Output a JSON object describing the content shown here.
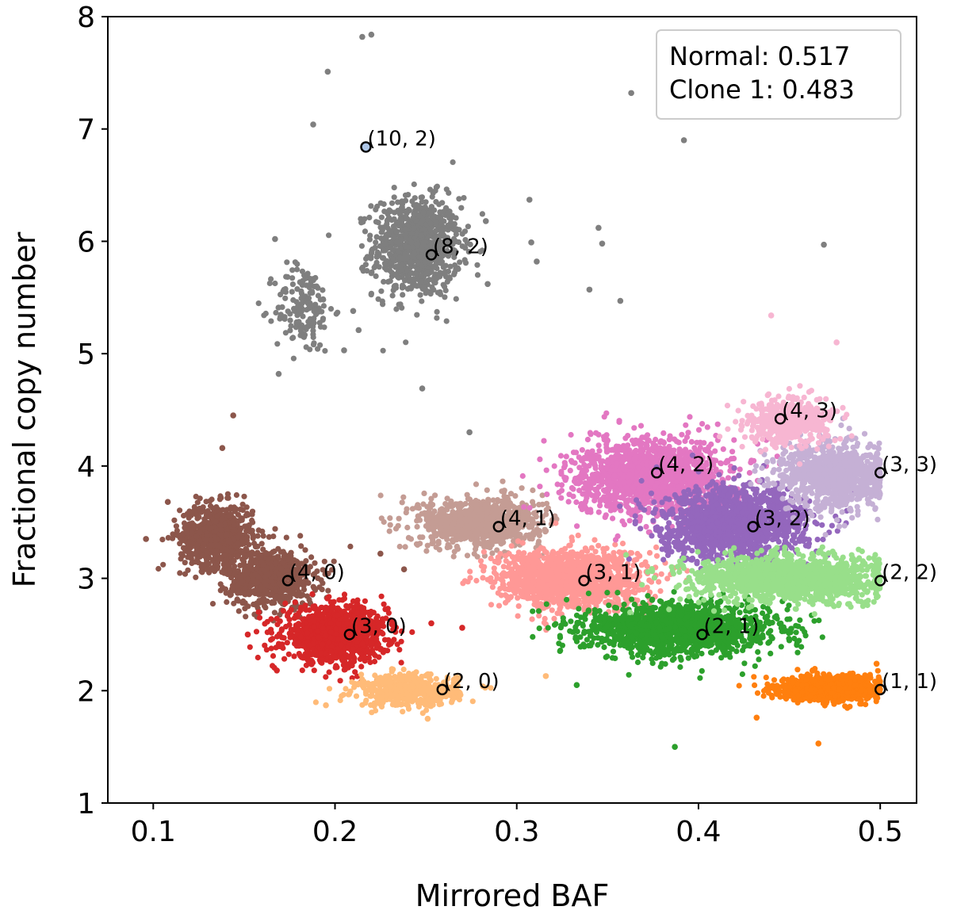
{
  "chart_data": {
    "type": "scatter",
    "xlabel": "Mirrored BAF",
    "ylabel": "Fractional copy number",
    "xlim": [
      0.075,
      0.52
    ],
    "ylim": [
      1,
      8
    ],
    "x_ticks": [
      0.1,
      0.2,
      0.3,
      0.4,
      0.5
    ],
    "x_tick_labels": [
      "0.1",
      "0.2",
      "0.3",
      "0.4",
      "0.5"
    ],
    "y_ticks": [
      1,
      2,
      3,
      4,
      5,
      6,
      7,
      8
    ],
    "y_tick_labels": [
      "1",
      "2",
      "3",
      "4",
      "5",
      "6",
      "7",
      "8"
    ],
    "grid": false,
    "legend": {
      "placement": "top-right",
      "entries": [
        "Normal: 0.517",
        "Clone 1: 0.483"
      ]
    },
    "clusters": [
      {
        "color": "#7f7f7f",
        "center": [
          0.245,
          5.95
        ],
        "spread": [
          0.012,
          0.22
        ],
        "n": 900
      },
      {
        "color": "#7f7f7f",
        "center": [
          0.183,
          5.4
        ],
        "spread": [
          0.008,
          0.2
        ],
        "n": 160
      },
      {
        "color": "#8c564b",
        "center": [
          0.135,
          3.38
        ],
        "spread": [
          0.01,
          0.14
        ],
        "n": 700
      },
      {
        "color": "#8c564b",
        "center": [
          0.165,
          3.0
        ],
        "spread": [
          0.012,
          0.13
        ],
        "n": 700
      },
      {
        "color": "#d62728",
        "center": [
          0.2,
          2.5
        ],
        "spread": [
          0.014,
          0.12
        ],
        "n": 1100
      },
      {
        "color": "#ffbb78",
        "center": [
          0.24,
          2.0
        ],
        "spread": [
          0.014,
          0.07
        ],
        "n": 500
      },
      {
        "color": "#c49c94",
        "center": [
          0.28,
          3.5
        ],
        "spread": [
          0.017,
          0.11
        ],
        "n": 900
      },
      {
        "color": "#ff9896",
        "center": [
          0.33,
          3.0
        ],
        "spread": [
          0.02,
          0.13
        ],
        "n": 1300
      },
      {
        "color": "#e377c2",
        "center": [
          0.375,
          3.9
        ],
        "spread": [
          0.022,
          0.17
        ],
        "n": 1400
      },
      {
        "color": "#9467bd",
        "center": [
          0.42,
          3.48
        ],
        "spread": [
          0.02,
          0.16
        ],
        "n": 1400
      },
      {
        "color": "#2ca02c",
        "center": [
          0.39,
          2.55
        ],
        "spread": [
          0.026,
          0.11
        ],
        "n": 1500
      },
      {
        "color": "#98df8a",
        "center": [
          0.45,
          3.0
        ],
        "spread": [
          0.026,
          0.1
        ],
        "n": 1500
      },
      {
        "color": "#c5b0d5",
        "center": [
          0.475,
          3.92
        ],
        "spread": [
          0.016,
          0.15
        ],
        "n": 900
      },
      {
        "color": "#f7b6d2",
        "center": [
          0.45,
          4.4
        ],
        "spread": [
          0.012,
          0.1
        ],
        "n": 500
      },
      {
        "color": "#ff7f0e",
        "center": [
          0.472,
          2.02
        ],
        "spread": [
          0.014,
          0.06
        ],
        "n": 800
      }
    ],
    "outliers": [
      {
        "x": 0.215,
        "y": 7.82,
        "color": "#7f7f7f"
      },
      {
        "x": 0.22,
        "y": 7.84,
        "color": "#7f7f7f"
      },
      {
        "x": 0.196,
        "y": 7.51,
        "color": "#7f7f7f"
      },
      {
        "x": 0.188,
        "y": 7.04,
        "color": "#7f7f7f"
      },
      {
        "x": 0.363,
        "y": 7.32,
        "color": "#7f7f7f"
      },
      {
        "x": 0.392,
        "y": 6.9,
        "color": "#7f7f7f"
      },
      {
        "x": 0.469,
        "y": 5.97,
        "color": "#7f7f7f"
      },
      {
        "x": 0.307,
        "y": 6.37,
        "color": "#7f7f7f"
      },
      {
        "x": 0.345,
        "y": 6.12,
        "color": "#7f7f7f"
      },
      {
        "x": 0.347,
        "y": 5.98,
        "color": "#7f7f7f"
      },
      {
        "x": 0.34,
        "y": 5.57,
        "color": "#7f7f7f"
      },
      {
        "x": 0.357,
        "y": 5.47,
        "color": "#7f7f7f"
      },
      {
        "x": 0.283,
        "y": 6.18,
        "color": "#7f7f7f"
      },
      {
        "x": 0.308,
        "y": 5.99,
        "color": "#7f7f7f"
      },
      {
        "x": 0.311,
        "y": 5.82,
        "color": "#7f7f7f"
      },
      {
        "x": 0.284,
        "y": 5.62,
        "color": "#7f7f7f"
      },
      {
        "x": 0.167,
        "y": 6.02,
        "color": "#7f7f7f"
      },
      {
        "x": 0.169,
        "y": 4.82,
        "color": "#7f7f7f"
      },
      {
        "x": 0.205,
        "y": 5.03,
        "color": "#7f7f7f"
      },
      {
        "x": 0.21,
        "y": 5.38,
        "color": "#7f7f7f"
      },
      {
        "x": 0.213,
        "y": 5.21,
        "color": "#7f7f7f"
      },
      {
        "x": 0.248,
        "y": 4.69,
        "color": "#7f7f7f"
      },
      {
        "x": 0.274,
        "y": 4.3,
        "color": "#7f7f7f"
      },
      {
        "x": 0.44,
        "y": 5.34,
        "color": "#f7b6d2"
      },
      {
        "x": 0.476,
        "y": 5.1,
        "color": "#f7b6d2"
      },
      {
        "x": 0.144,
        "y": 4.45,
        "color": "#8c564b"
      },
      {
        "x": 0.138,
        "y": 4.16,
        "color": "#8c564b"
      },
      {
        "x": 0.096,
        "y": 3.35,
        "color": "#8c564b"
      },
      {
        "x": 0.108,
        "y": 3.68,
        "color": "#8c564b"
      },
      {
        "x": 0.225,
        "y": 3.22,
        "color": "#8c564b"
      },
      {
        "x": 0.238,
        "y": 3.08,
        "color": "#8c564b"
      },
      {
        "x": 0.168,
        "y": 2.18,
        "color": "#d62728"
      },
      {
        "x": 0.152,
        "y": 2.5,
        "color": "#d62728"
      },
      {
        "x": 0.27,
        "y": 2.56,
        "color": "#d62728"
      },
      {
        "x": 0.253,
        "y": 2.6,
        "color": "#d62728"
      },
      {
        "x": 0.251,
        "y": 1.75,
        "color": "#ffbb78"
      },
      {
        "x": 0.195,
        "y": 1.87,
        "color": "#ffbb78"
      },
      {
        "x": 0.316,
        "y": 2.13,
        "color": "#ffbb78"
      },
      {
        "x": 0.387,
        "y": 1.5,
        "color": "#2ca02c"
      },
      {
        "x": 0.333,
        "y": 2.05,
        "color": "#2ca02c"
      },
      {
        "x": 0.432,
        "y": 1.76,
        "color": "#ff7f0e"
      },
      {
        "x": 0.466,
        "y": 1.53,
        "color": "#ff7f0e"
      },
      {
        "x": 0.498,
        "y": 2.24,
        "color": "#ff7f0e"
      }
    ],
    "annotations": [
      {
        "label": "(10, 2)",
        "x": 0.217,
        "y": 6.84,
        "fill": "#aec7e8"
      },
      {
        "label": "(8, 2)",
        "x": 0.253,
        "y": 5.88,
        "fill": "none"
      },
      {
        "label": "(4, 3)",
        "x": 0.445,
        "y": 4.42,
        "fill": "none"
      },
      {
        "label": "(4, 2)",
        "x": 0.377,
        "y": 3.94,
        "fill": "none"
      },
      {
        "label": "(3, 3)",
        "x": 0.5,
        "y": 3.94,
        "fill": "none"
      },
      {
        "label": "(4, 1)",
        "x": 0.29,
        "y": 3.46,
        "fill": "none"
      },
      {
        "label": "(3, 2)",
        "x": 0.43,
        "y": 3.46,
        "fill": "none"
      },
      {
        "label": "(4, 0)",
        "x": 0.174,
        "y": 2.98,
        "fill": "none"
      },
      {
        "label": "(3, 1)",
        "x": 0.337,
        "y": 2.98,
        "fill": "none"
      },
      {
        "label": "(2, 2)",
        "x": 0.5,
        "y": 2.98,
        "fill": "none"
      },
      {
        "label": "(3, 0)",
        "x": 0.208,
        "y": 2.5,
        "fill": "none"
      },
      {
        "label": "(2, 1)",
        "x": 0.402,
        "y": 2.5,
        "fill": "none"
      },
      {
        "label": "(2, 0)",
        "x": 0.259,
        "y": 2.01,
        "fill": "none"
      },
      {
        "label": "(1, 1)",
        "x": 0.5,
        "y": 2.01,
        "fill": "none"
      }
    ]
  }
}
